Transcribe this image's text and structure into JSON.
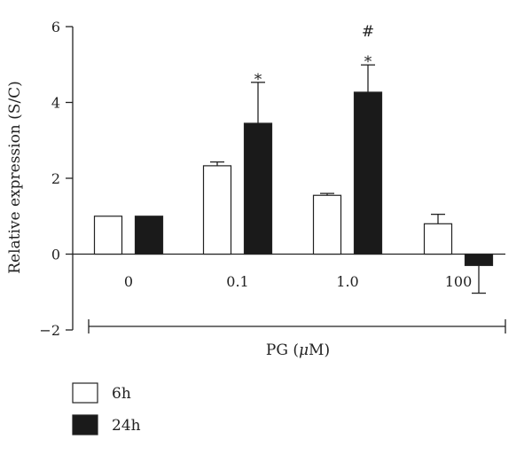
{
  "chart_data": {
    "type": "bar",
    "ylabel": "Relative expression (S/C)",
    "xlabel_prefix": "PG (",
    "xlabel_unit_italic": "μ",
    "xlabel_suffix": "M)",
    "categories": [
      "0",
      "0.1",
      "1.0",
      "100"
    ],
    "ylim": [
      -2,
      6
    ],
    "yticks": [
      "6",
      "4",
      "2",
      "0",
      "−2"
    ],
    "ytick_values": [
      6,
      4,
      2,
      0,
      -2
    ],
    "grid": false,
    "legend_position": "bottom-left",
    "series": [
      {
        "name": "6h",
        "fill": "#ffffff",
        "values": [
          1.0,
          2.33,
          1.55,
          0.8
        ],
        "errors": [
          0,
          0.1,
          0.05,
          0.25
        ]
      },
      {
        "name": "24h",
        "fill": "#1a1a1a",
        "values": [
          1.0,
          3.45,
          4.27,
          -0.3
        ],
        "errors": [
          0,
          1.08,
          0.72,
          0.73
        ]
      }
    ],
    "annotations": [
      {
        "category_index": 1,
        "series_index": 1,
        "lines": [
          "*"
        ]
      },
      {
        "category_index": 2,
        "series_index": 1,
        "lines": [
          "#",
          "*"
        ]
      }
    ]
  }
}
